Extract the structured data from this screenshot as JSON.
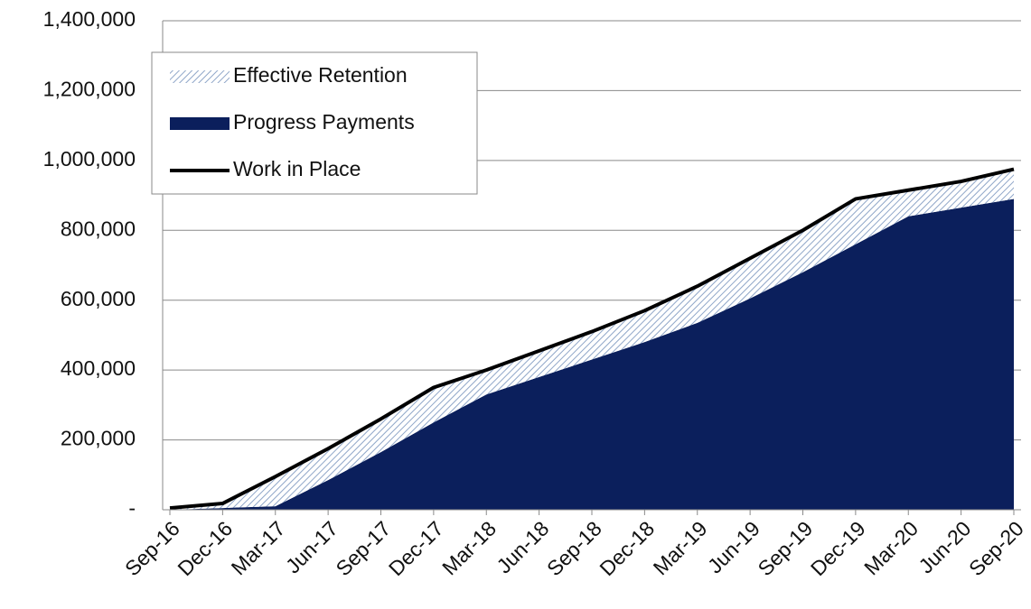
{
  "chart_data": {
    "type": "area",
    "stacked": true,
    "categories": [
      "Sep-16",
      "Dec-16",
      "Mar-17",
      "Jun-17",
      "Sep-17",
      "Dec-17",
      "Mar-18",
      "Jun-18",
      "Sep-18",
      "Dec-18",
      "Mar-19",
      "Jun-19",
      "Sep-19",
      "Dec-19",
      "Mar-20",
      "Jun-20",
      "Sep-20"
    ],
    "series": [
      {
        "name": "Effective Retention",
        "kind": "area",
        "pattern": "hatch",
        "color": "#8fa6c8",
        "values": [
          5000,
          13000,
          85000,
          90000,
          95000,
          100000,
          70000,
          75000,
          80000,
          90000,
          105000,
          115000,
          120000,
          130000,
          75000,
          75000,
          85000
        ]
      },
      {
        "name": "Progress Payments",
        "kind": "area",
        "color": "#0b1f5c",
        "values": [
          0,
          5000,
          10000,
          85000,
          165000,
          250000,
          330000,
          380000,
          430000,
          480000,
          535000,
          605000,
          680000,
          760000,
          840000,
          865000,
          890000
        ]
      },
      {
        "name": "Work in Place",
        "kind": "line",
        "color": "#000000",
        "values": [
          5000,
          18000,
          95000,
          175000,
          260000,
          350000,
          400000,
          455000,
          510000,
          570000,
          640000,
          720000,
          800000,
          890000,
          915000,
          940000,
          975000
        ]
      }
    ],
    "ylim": [
      0,
      1400000
    ],
    "yticks": [
      {
        "value": 0,
        "label": "-"
      },
      {
        "value": 200000,
        "label": "200,000"
      },
      {
        "value": 400000,
        "label": "400,000"
      },
      {
        "value": 600000,
        "label": "600,000"
      },
      {
        "value": 800000,
        "label": "800,000"
      },
      {
        "value": 1000000,
        "label": "1,000,000"
      },
      {
        "value": 1200000,
        "label": "1,200,000"
      },
      {
        "value": 1400000,
        "label": "1,400,000"
      }
    ],
    "grid": true,
    "legend": "top-left"
  }
}
